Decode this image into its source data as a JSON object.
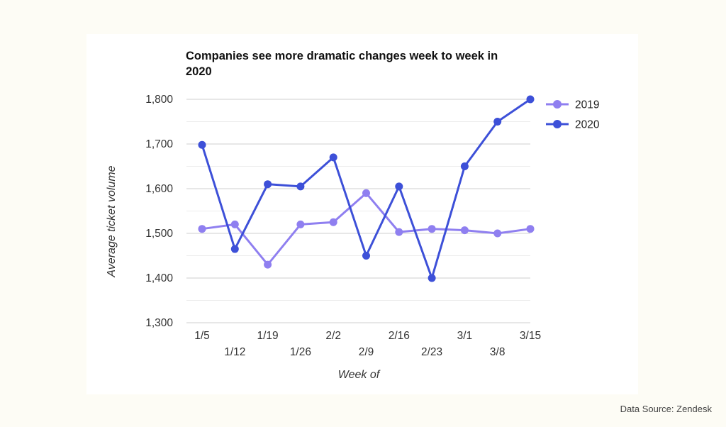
{
  "chart_data": {
    "type": "line",
    "title_lines": [
      "Companies see more dramatic changes week to week in",
      "2020"
    ],
    "xlabel": "Week of",
    "ylabel": "Average ticket volume",
    "categories": [
      "1/5",
      "1/12",
      "1/19",
      "1/26",
      "2/2",
      "2/9",
      "2/16",
      "2/23",
      "3/1",
      "3/8",
      "3/15"
    ],
    "ylim": [
      1300,
      1800
    ],
    "yticks": [
      1300,
      1400,
      1500,
      1600,
      1700,
      1800
    ],
    "ytick_labels": [
      "1,300",
      "1,400",
      "1,500",
      "1,600",
      "1,700",
      "1,800"
    ],
    "grid": true,
    "legend_position": "right",
    "series": [
      {
        "name": "2019",
        "color": "#8f7ff0",
        "values": [
          1510,
          1520,
          1430,
          1520,
          1525,
          1590,
          1503,
          1510,
          1507,
          1500,
          1510
        ]
      },
      {
        "name": "2020",
        "color": "#3d50d8",
        "values": [
          1698,
          1465,
          1610,
          1605,
          1670,
          1450,
          1605,
          1400,
          1650,
          1750,
          1800
        ]
      }
    ]
  },
  "footer": {
    "source": "Data Source: Zendesk"
  }
}
